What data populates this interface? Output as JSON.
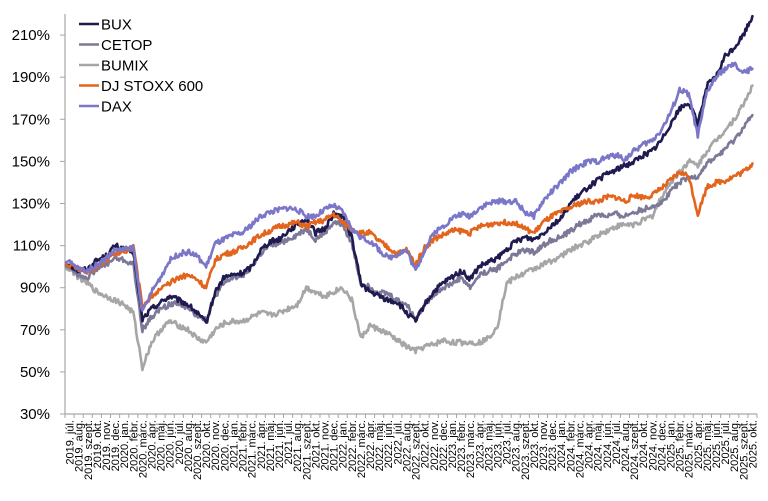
{
  "chart_data": {
    "type": "line",
    "title": "",
    "xlabel": "",
    "ylabel": "",
    "ylim": [
      30,
      220
    ],
    "y_ticks": [
      "30%",
      "50%",
      "70%",
      "90%",
      "110%",
      "130%",
      "150%",
      "170%",
      "190%",
      "210%"
    ],
    "grid": false,
    "legend_position": "top-left",
    "categories": [
      "2019. júl.",
      "2019. aug.",
      "2019. szept.",
      "2019. okt.",
      "2019. nov.",
      "2019. dec.",
      "2020. jan.",
      "2020. febr.",
      "2020. márc.",
      "2020. ápr.",
      "2020. máj.",
      "2020. jún.",
      "2020. júl.",
      "2020. aug.",
      "2020. szept.",
      "2020. okt.",
      "2020. nov.",
      "2020. dec.",
      "2021. jan.",
      "2021. febr.",
      "2021. márc.",
      "2021. ápr.",
      "2021. máj.",
      "2021. jún.",
      "2021. júl.",
      "2021. aug.",
      "2021. szept.",
      "2021. okt.",
      "2021. nov.",
      "2021. dec.",
      "2022. jan.",
      "2022. febr.",
      "2022. márc.",
      "2022. ápr.",
      "2022. máj.",
      "2022. jún.",
      "2022. júl.",
      "2022. aug.",
      "2022. szept.",
      "2022. okt.",
      "2022. nov.",
      "2022. dec.",
      "2023. jan.",
      "2023. febr.",
      "2023. márc.",
      "2023. ápr.",
      "2023. máj.",
      "2023. jún.",
      "2023. júl.",
      "2023. aug.",
      "2023. szept.",
      "2023. okt.",
      "2023. nov.",
      "2023. dec.",
      "2024. jan.",
      "2024. febr.",
      "2024. márc.",
      "2024. ápr.",
      "2024. máj.",
      "2024. jún.",
      "2024. júl.",
      "2024. aug.",
      "2024. szept.",
      "2024. okt.",
      "2024. nov.",
      "2024. dec.",
      "2025. jan.",
      "2025. febr.",
      "2025. márc.",
      "2025. ápr.",
      "2025. máj.",
      "2025. jún.",
      "2025. júl.",
      "2025. aug.",
      "2025. szept.",
      "2025. okt."
    ],
    "series": [
      {
        "name": "BUX",
        "color": "#1f1a4f",
        "values": [
          101,
          98,
          99,
          103,
          105,
          110,
          108,
          107,
          75,
          80,
          83,
          86,
          84,
          82,
          78,
          73,
          88,
          95,
          96,
          97,
          100,
          108,
          112,
          113,
          117,
          120,
          123,
          116,
          118,
          125,
          124,
          114,
          92,
          88,
          86,
          84,
          83,
          78,
          74,
          82,
          88,
          92,
          95,
          98,
          94,
          100,
          102,
          104,
          108,
          112,
          114,
          113,
          116,
          120,
          123,
          130,
          134,
          138,
          141,
          144,
          146,
          148,
          150,
          153,
          155,
          160,
          168,
          175,
          178,
          168,
          186,
          190,
          200,
          204,
          210,
          219
        ]
      },
      {
        "name": "CETOP",
        "color": "#7b7997",
        "values": [
          100,
          96,
          95,
          99,
          101,
          104,
          103,
          101,
          70,
          76,
          80,
          82,
          83,
          80,
          77,
          75,
          86,
          92,
          95,
          96,
          100,
          106,
          110,
          111,
          113,
          115,
          118,
          113,
          116,
          121,
          120,
          111,
          92,
          90,
          88,
          87,
          84,
          82,
          75,
          82,
          87,
          90,
          92,
          95,
          90,
          96,
          98,
          99,
          103,
          106,
          108,
          107,
          110,
          113,
          114,
          117,
          120,
          122,
          125,
          124,
          125,
          124,
          126,
          127,
          129,
          130,
          136,
          140,
          142,
          143,
          149,
          152,
          156,
          160,
          166,
          172
        ]
      },
      {
        "name": "BUMIX",
        "color": "#a6a6a6",
        "values": [
          99,
          95,
          92,
          88,
          86,
          84,
          82,
          78,
          52,
          64,
          70,
          74,
          72,
          70,
          66,
          64,
          70,
          73,
          74,
          74,
          76,
          78,
          77,
          78,
          80,
          82,
          90,
          88,
          86,
          88,
          90,
          84,
          66,
          72,
          70,
          68,
          65,
          62,
          60,
          62,
          63,
          65,
          64,
          64,
          64,
          64,
          66,
          72,
          92,
          95,
          97,
          99,
          101,
          103,
          105,
          108,
          110,
          112,
          115,
          117,
          119,
          120,
          120,
          122,
          124,
          133,
          140,
          145,
          150,
          148,
          155,
          160,
          165,
          170,
          177,
          186
        ]
      },
      {
        "name": "DJ STOXX 600",
        "color": "#e3651d",
        "values": [
          101,
          99,
          97,
          100,
          103,
          106,
          107,
          110,
          81,
          86,
          89,
          92,
          95,
          96,
          94,
          90,
          103,
          106,
          107,
          109,
          112,
          115,
          117,
          119,
          120,
          121,
          119,
          121,
          122,
          125,
          121,
          118,
          116,
          116,
          112,
          109,
          106,
          108,
          101,
          109,
          113,
          115,
          117,
          117,
          116,
          119,
          120,
          121,
          121,
          121,
          118,
          116,
          121,
          124,
          126,
          128,
          130,
          131,
          131,
          133,
          133,
          131,
          134,
          133,
          134,
          137,
          141,
          145,
          143,
          125,
          138,
          140,
          141,
          143,
          145,
          149
        ]
      },
      {
        "name": "DAX",
        "color": "#7b77c8",
        "values": [
          102,
          99,
          98,
          101,
          104,
          108,
          108,
          109,
          78,
          88,
          95,
          103,
          106,
          107,
          105,
          100,
          111,
          113,
          115,
          116,
          120,
          124,
          126,
          127,
          128,
          127,
          124,
          124,
          127,
          129,
          126,
          118,
          114,
          112,
          108,
          104,
          106,
          108,
          98,
          108,
          116,
          119,
          123,
          125,
          124,
          128,
          130,
          131,
          131,
          131,
          126,
          124,
          131,
          136,
          140,
          145,
          148,
          150,
          150,
          152,
          153,
          151,
          155,
          158,
          160,
          165,
          173,
          184,
          182,
          162,
          183,
          190,
          194,
          196,
          192,
          194
        ]
      }
    ]
  },
  "legend": {
    "items": [
      {
        "label": "BUX",
        "color": "#1f1a4f"
      },
      {
        "label": "CETOP",
        "color": "#7b7997"
      },
      {
        "label": "BUMIX",
        "color": "#a6a6a6"
      },
      {
        "label": "DJ STOXX 600",
        "color": "#e3651d"
      },
      {
        "label": "DAX",
        "color": "#7b77c8"
      }
    ]
  },
  "axes": {
    "y_labels": [
      "30%",
      "50%",
      "70%",
      "90%",
      "110%",
      "130%",
      "150%",
      "170%",
      "190%",
      "210%"
    ]
  }
}
